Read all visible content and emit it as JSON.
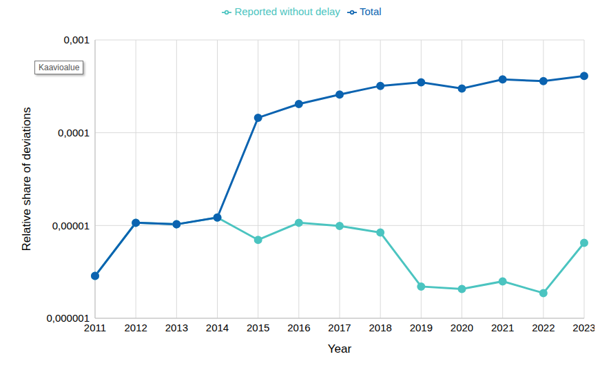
{
  "chart_data": {
    "type": "line",
    "x_label": "Year",
    "y_label": "Relative share of deviations",
    "annotations": [
      "Kaavioalue"
    ],
    "categories": [
      "2011",
      "2012",
      "2013",
      "2014",
      "2015",
      "2016",
      "2017",
      "2018",
      "2019",
      "2020",
      "2021",
      "2022",
      "2023"
    ],
    "series": [
      {
        "name": "Reported without delay",
        "color": "#4bc4c0",
        "marker": "circle",
        "values": [
          2.86e-06,
          1.07e-05,
          1.03e-05,
          1.22e-05,
          7e-06,
          1.07e-05,
          9.9e-06,
          8.4e-06,
          2.2e-06,
          2.07e-06,
          2.5e-06,
          1.87e-06,
          6.5e-06
        ]
      },
      {
        "name": "Total",
        "color": "#0b63b0",
        "marker": "circle",
        "values": [
          2.86e-06,
          1.07e-05,
          1.03e-05,
          1.22e-05,
          0.000145,
          0.000204,
          0.000258,
          0.00032,
          0.00035,
          0.0003,
          0.000375,
          0.00036,
          0.00041
        ]
      }
    ],
    "log": "y",
    "ylim": [
      1e-06,
      0.001
    ],
    "yticks": [
      {
        "value": 1e-06,
        "label": "0,000001"
      },
      {
        "value": 1e-05,
        "label": "0,00001"
      },
      {
        "value": 0.0001,
        "label": "0,0001"
      },
      {
        "value": 0.001,
        "label": "0,001"
      }
    ],
    "grid": true,
    "legend": "top"
  }
}
